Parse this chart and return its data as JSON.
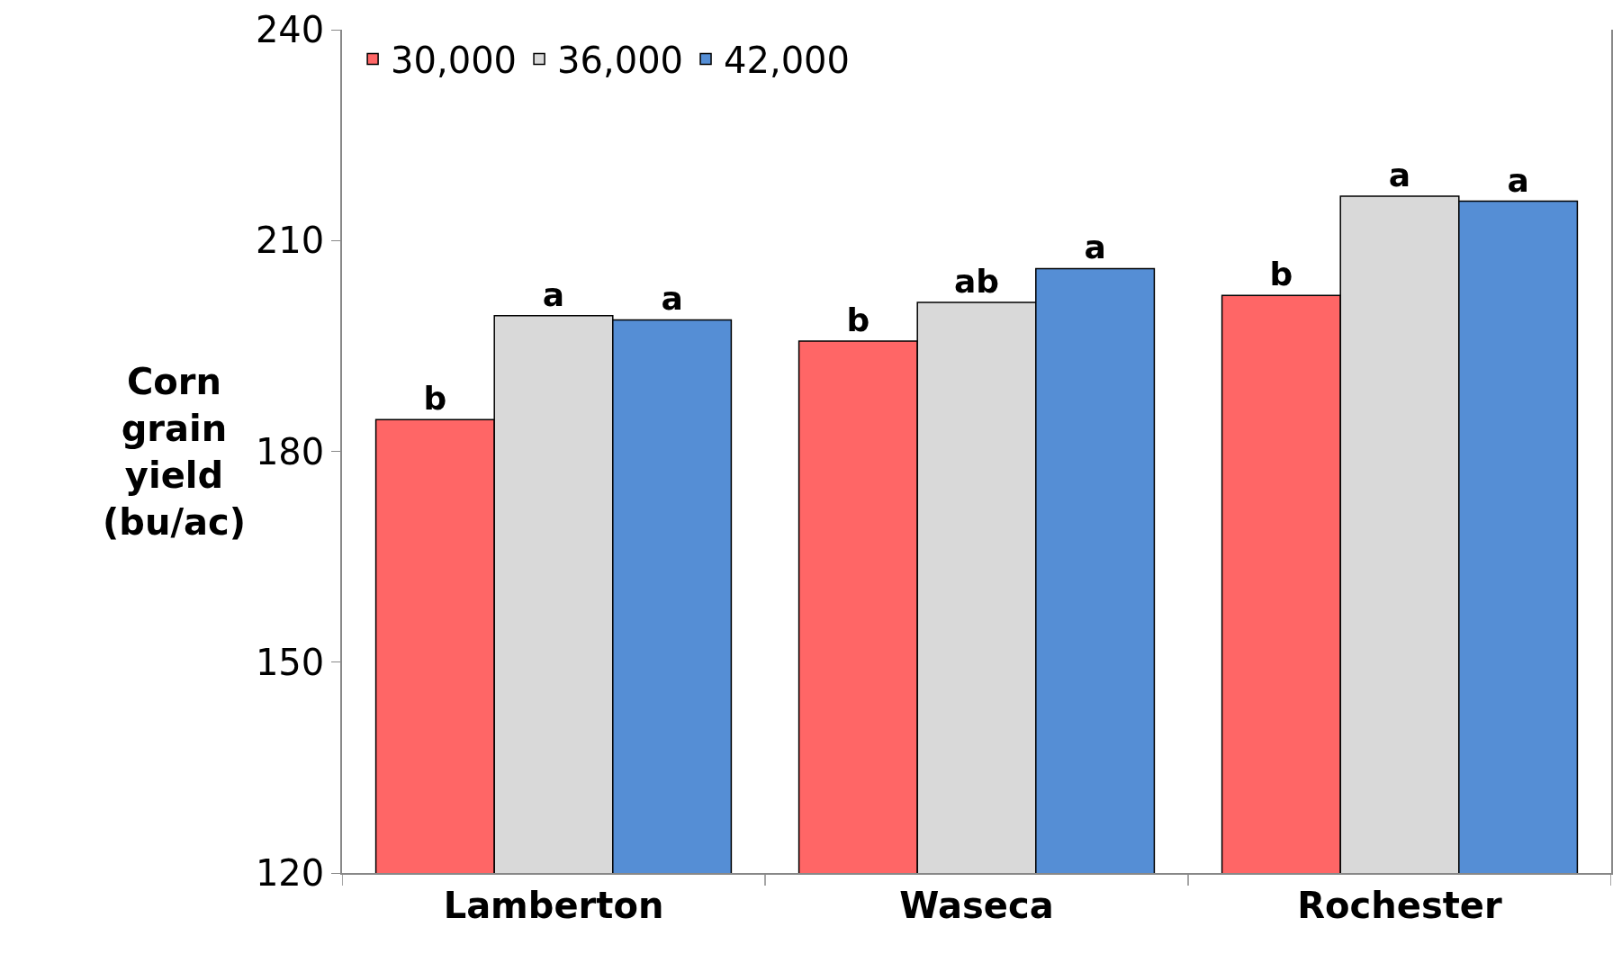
{
  "chart_data": {
    "type": "bar",
    "ylabel": "Corn grain yield (bu/ac)",
    "categories": [
      "Lamberton",
      "Waseca",
      "Rochester"
    ],
    "series": [
      {
        "name": "30,000",
        "color": "#ff6666",
        "values": [
          184.5,
          195.7,
          202.2
        ],
        "value_labels": [
          "b",
          "b",
          "b"
        ]
      },
      {
        "name": "36,000",
        "color": "#d9d9d9",
        "values": [
          199.3,
          201.2,
          216.3
        ],
        "value_labels": [
          "a",
          "ab",
          "a"
        ]
      },
      {
        "name": "42,000",
        "color": "#558ed5",
        "values": [
          198.7,
          206.0,
          215.6
        ],
        "value_labels": [
          "a",
          "a",
          "a"
        ]
      }
    ],
    "ylim": [
      120,
      240
    ],
    "yticks": [
      120,
      150,
      180,
      210,
      240
    ],
    "legend": "top left"
  }
}
